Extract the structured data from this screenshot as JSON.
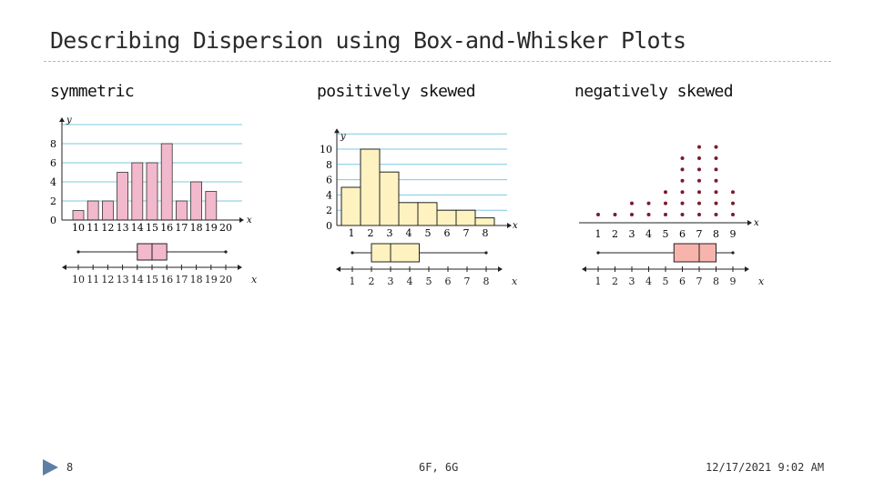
{
  "slide": {
    "title": "Describing Dispersion using Box-and-Whisker Plots",
    "footer_left": "8",
    "footer_center": "6F, 6G",
    "footer_right": "12/17/2021 9:02 AM"
  },
  "colors": {
    "grid": "#7ec8e3",
    "symmetric_fill": "#f2b8cc",
    "positive_fill": "#fdf2c0",
    "negative_box": "#f7b4ad",
    "dot": "#7a1a2e"
  },
  "chart_data": [
    {
      "type": "bar",
      "id": "symmetric",
      "title": "symmetric",
      "xlabel": "x",
      "ylabel": "y",
      "categories": [
        "10",
        "11",
        "12",
        "13",
        "14",
        "15",
        "16",
        "17",
        "18",
        "19",
        "20"
      ],
      "values": [
        1,
        2,
        2,
        5,
        6,
        6,
        8,
        2,
        4,
        3,
        0
      ],
      "yticks": [
        "0",
        "2",
        "4",
        "6",
        "8"
      ],
      "ylim": [
        0,
        10
      ],
      "box_plot": {
        "min": 10,
        "q1": 14,
        "median": 15,
        "q3": 16,
        "max": 20,
        "axis_ticks": [
          "10",
          "11",
          "12",
          "13",
          "14",
          "15",
          "16",
          "17",
          "18",
          "19",
          "20"
        ],
        "axis_label": "x"
      }
    },
    {
      "type": "bar",
      "id": "positive",
      "title": "positively skewed",
      "xlabel": "x",
      "ylabel": "y",
      "categories": [
        "1",
        "2",
        "3",
        "4",
        "5",
        "6",
        "7",
        "8"
      ],
      "values": [
        5,
        10,
        7,
        3,
        3,
        2,
        2,
        1
      ],
      "yticks": [
        "0",
        "2",
        "4",
        "6",
        "8",
        "10"
      ],
      "ylim": [
        0,
        12
      ],
      "box_plot": {
        "min": 1,
        "q1": 2,
        "median": 3,
        "q3": 4.5,
        "max": 8,
        "axis_ticks": [
          "1",
          "2",
          "3",
          "4",
          "5",
          "6",
          "7",
          "8"
        ],
        "axis_label": "x"
      }
    },
    {
      "type": "scatter",
      "id": "negative",
      "title": "negatively skewed",
      "xlabel": "x",
      "categories": [
        "1",
        "2",
        "3",
        "4",
        "5",
        "6",
        "7",
        "8",
        "9"
      ],
      "values": [
        1,
        1,
        2,
        2,
        3,
        6,
        7,
        7,
        3
      ],
      "box_plot": {
        "min": 1,
        "q1": 5.5,
        "median": 7,
        "q3": 8,
        "max": 9,
        "axis_ticks": [
          "1",
          "2",
          "3",
          "4",
          "5",
          "6",
          "7",
          "8",
          "9"
        ],
        "axis_label": "x"
      }
    }
  ]
}
